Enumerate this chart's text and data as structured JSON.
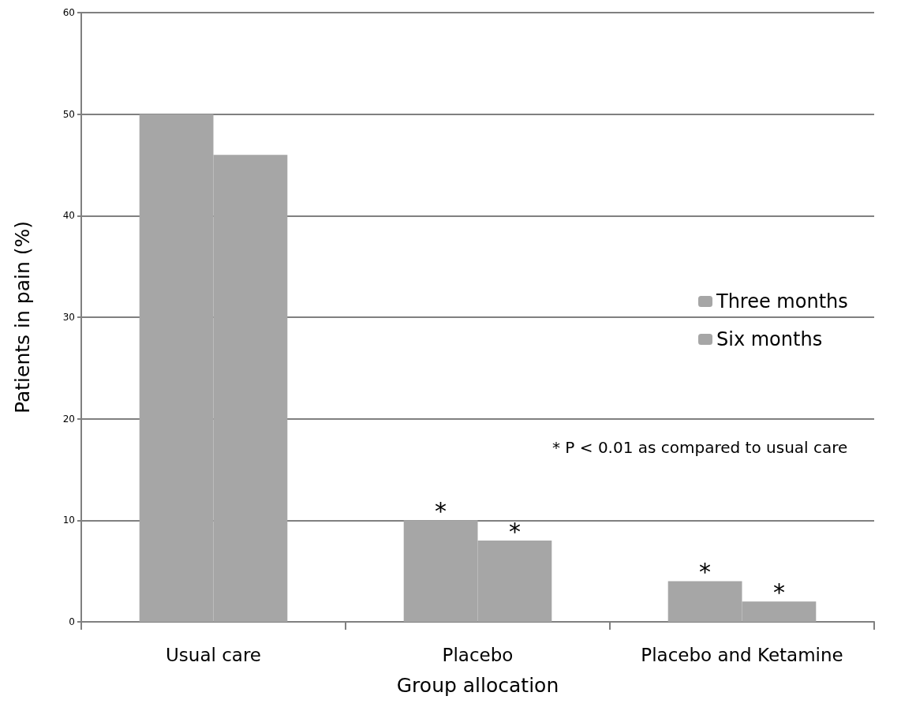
{
  "chart_data": {
    "type": "bar",
    "xlabel": "Group allocation",
    "ylabel": "Patients in pain (%)",
    "categories": [
      "Usual care",
      "Placebo",
      "Placebo and Ketamine"
    ],
    "series": [
      {
        "name": "Three months",
        "color": "#a6a6a6",
        "values": [
          50,
          10,
          4
        ]
      },
      {
        "name": "Six months",
        "color": "#a6a6a6",
        "values": [
          46,
          8,
          2
        ]
      }
    ],
    "ylim": [
      0,
      60
    ],
    "yticks": [
      0,
      10,
      20,
      30,
      40,
      50,
      60
    ],
    "grid": "y",
    "legend": "right",
    "annotations": [
      {
        "text": "*",
        "x": "Placebo",
        "y": 10
      },
      {
        "text": "*",
        "x": "Placebo",
        "y": 8
      },
      {
        "text": "*",
        "x": "Placebo and Ketamine",
        "y": 4
      },
      {
        "text": "*",
        "x": "Placebo and Ketamine",
        "y": 2
      },
      "* P < 0.01 as compared to usual care"
    ]
  }
}
